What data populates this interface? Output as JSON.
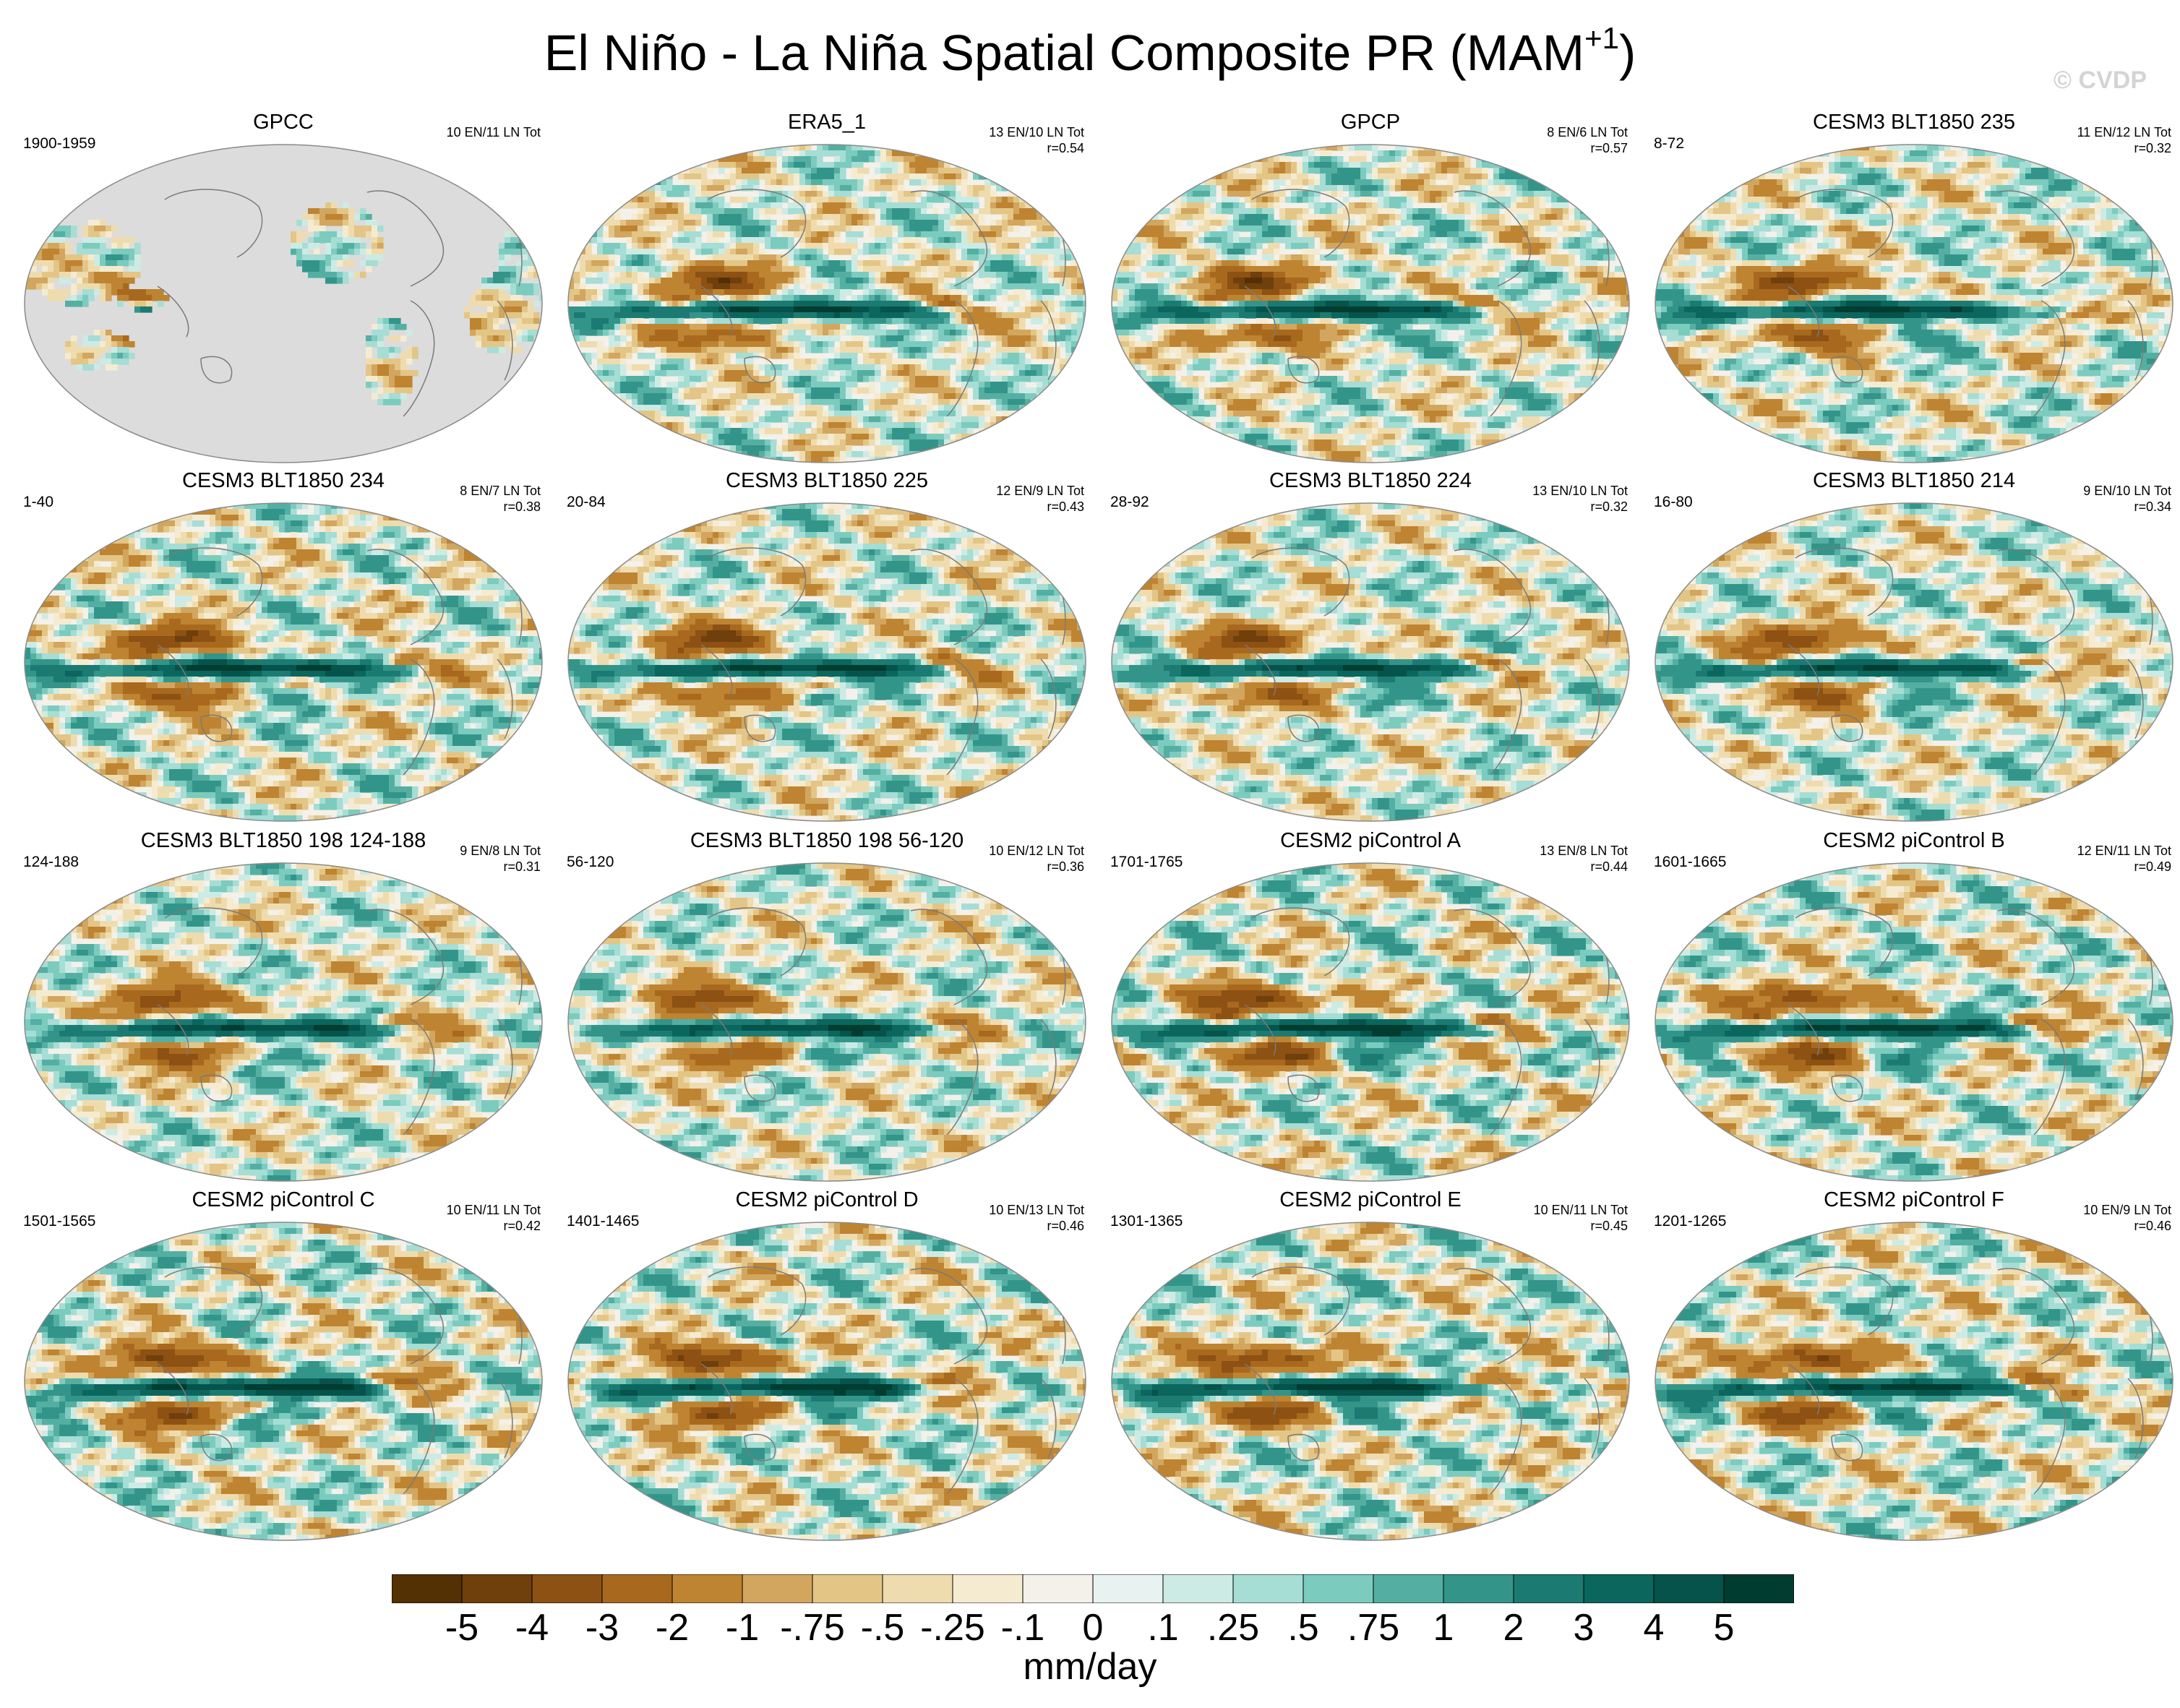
{
  "figure": {
    "title_main": "El Niño - La Niña Spatial Composite PR (MAM",
    "title_sup": "+1",
    "title_close": ")",
    "watermark": "© CVDP"
  },
  "colors": {
    "scale": [
      "#543005",
      "#6f3f0c",
      "#8c5113",
      "#a8691f",
      "#be8432",
      "#d2a65e",
      "#e3c686",
      "#efdcae",
      "#f5ebd0",
      "#f4f1ea",
      "#e8f2f0",
      "#cdebe5",
      "#a6ddd4",
      "#7ccbbf",
      "#54afa2",
      "#33958a",
      "#1b7b72",
      "#0b665d",
      "#06534b",
      "#003c30"
    ],
    "land": "#dcdcdc",
    "coast": "#7a7a7a"
  },
  "colorbar": {
    "labels": [
      "-5",
      "-4",
      "-3",
      "-2",
      "-1",
      "-.75",
      "-.5",
      "-.25",
      "-.1",
      "0",
      ".1",
      ".25",
      ".5",
      ".75",
      "1",
      "2",
      "3",
      "4",
      "5"
    ],
    "units": "mm/day"
  },
  "panels": [
    {
      "title": "GPCC",
      "period": "1900-1959",
      "stats": "10 EN/11 LN Tot",
      "r": "",
      "gpcc": true,
      "str": 0.9,
      "ofs": 1
    },
    {
      "title": "ERA5_1",
      "period": "",
      "stats": "13 EN/10 LN Tot",
      "r": "r=0.54",
      "gpcc": false,
      "str": 0.95,
      "ofs": 2
    },
    {
      "title": "GPCP",
      "period": "",
      "stats": "8 EN/6 LN Tot",
      "r": "r=0.57",
      "gpcc": false,
      "str": 1.0,
      "ofs": 3
    },
    {
      "title": "CESM3 BLT1850 235",
      "period": "8-72",
      "stats": "11 EN/12 LN Tot",
      "r": "r=0.32",
      "gpcc": false,
      "str": 1.0,
      "ofs": 4
    },
    {
      "title": "CESM3 BLT1850 234",
      "period": "1-40",
      "stats": "8 EN/7 LN Tot",
      "r": "r=0.38",
      "gpcc": false,
      "str": 1.05,
      "ofs": 5
    },
    {
      "title": "CESM3 BLT1850 225",
      "period": "20-84",
      "stats": "12 EN/9 LN Tot",
      "r": "r=0.43",
      "gpcc": false,
      "str": 1.0,
      "ofs": 6
    },
    {
      "title": "CESM3 BLT1850 224",
      "period": "28-92",
      "stats": "13 EN/10 LN Tot",
      "r": "r=0.32",
      "gpcc": false,
      "str": 0.95,
      "ofs": 7
    },
    {
      "title": "CESM3 BLT1850 214",
      "period": "16-80",
      "stats": "9 EN/10 LN Tot",
      "r": "r=0.34",
      "gpcc": false,
      "str": 0.95,
      "ofs": 8
    },
    {
      "title": "CESM3 BLT1850 198 124-188",
      "period": "124-188",
      "stats": "9 EN/8 LN Tot",
      "r": "r=0.31",
      "gpcc": false,
      "str": 0.95,
      "ofs": 9
    },
    {
      "title": "CESM3 BLT1850 198 56-120",
      "period": "56-120",
      "stats": "10 EN/12 LN Tot",
      "r": "r=0.36",
      "gpcc": false,
      "str": 0.95,
      "ofs": 10
    },
    {
      "title": "CESM2 piControl A",
      "period": "1701-1765",
      "stats": "13 EN/8 LN Tot",
      "r": "r=0.44",
      "gpcc": false,
      "str": 1.1,
      "ofs": 11
    },
    {
      "title": "CESM2 piControl B",
      "period": "1601-1665",
      "stats": "12 EN/11 LN Tot",
      "r": "r=0.49",
      "gpcc": false,
      "str": 1.05,
      "ofs": 12
    },
    {
      "title": "CESM2 piControl C",
      "period": "1501-1565",
      "stats": "10 EN/11 LN Tot",
      "r": "r=0.42",
      "gpcc": false,
      "str": 1.1,
      "ofs": 13
    },
    {
      "title": "CESM2 piControl D",
      "period": "1401-1465",
      "stats": "10 EN/13 LN Tot",
      "r": "r=0.46",
      "gpcc": false,
      "str": 1.1,
      "ofs": 14
    },
    {
      "title": "CESM2 piControl E",
      "period": "1301-1365",
      "stats": "10 EN/11 LN Tot",
      "r": "r=0.45",
      "gpcc": false,
      "str": 1.1,
      "ofs": 15
    },
    {
      "title": "CESM2 piControl F",
      "period": "1201-1265",
      "stats": "10 EN/9 LN Tot",
      "r": "r=0.46",
      "gpcc": false,
      "str": 1.05,
      "ofs": 16
    }
  ]
}
